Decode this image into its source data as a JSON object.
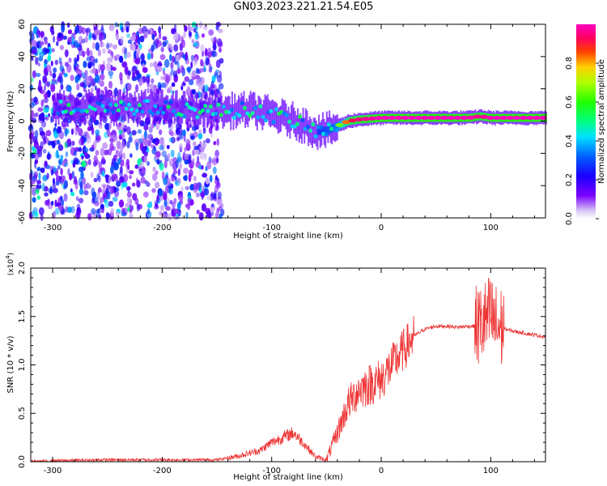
{
  "title": "GN03.2023.221.21.54.E05",
  "chart_data": [
    {
      "type": "heatmap",
      "xlabel": "Height of straight line (km)",
      "ylabel": "Frequency (Hz)",
      "xlim": [
        -320,
        150
      ],
      "ylim": [
        -60,
        60
      ],
      "x_ticks": [
        -300,
        -200,
        -100,
        0,
        100
      ],
      "y_ticks": [
        -60,
        -40,
        -20,
        0,
        20,
        40,
        60
      ],
      "colorbar": {
        "label": "Normalized spectral amplitude",
        "range": [
          0,
          1
        ],
        "ticks": [
          "0.0",
          "0.2",
          "0.4",
          "0.6",
          "0.8"
        ],
        "colormap": "hsv-like (purple, blue, cyan, green, yellow, orange, red, magenta)"
      },
      "ridge": {
        "description_x": [
          -300,
          -250,
          -200,
          -150,
          -120,
          -100,
          -80,
          -70,
          -60,
          -50,
          -40,
          -30,
          -20,
          0,
          20,
          50,
          80,
          90,
          100,
          150
        ],
        "frequency_hz": [
          8,
          9,
          8,
          6,
          7,
          4,
          0,
          -3,
          -6,
          -6,
          -3,
          0,
          1,
          2,
          2,
          2,
          2,
          3,
          2,
          2
        ],
        "peak_amplitude": [
          0.35,
          0.45,
          0.45,
          0.4,
          0.45,
          0.45,
          0.4,
          0.4,
          0.45,
          0.5,
          0.6,
          0.9,
          0.95,
          1.0,
          1.0,
          1.0,
          1.0,
          0.95,
          1.0,
          1.0
        ]
      },
      "noise_region_x": [
        -320,
        -145
      ]
    },
    {
      "type": "line",
      "xlabel": "Height of straight line (km)",
      "ylabel": "SNR (10 * v/v)",
      "y_scale_label": "(x10^4)",
      "xlim": [
        -320,
        150
      ],
      "ylim": [
        0,
        2.0
      ],
      "x_ticks": [
        -300,
        -200,
        -100,
        0,
        100
      ],
      "y_ticks": [
        "0.0",
        "0.5",
        "1.0",
        "1.5",
        "2.0"
      ],
      "color": "#ee3333",
      "series": [
        {
          "x": [
            -320,
            -300,
            -250,
            -200,
            -150,
            -130,
            -110,
            -100,
            -90,
            -80,
            -70,
            -60,
            -50,
            -40,
            -30,
            -20,
            -10,
            0,
            10,
            20,
            30,
            40,
            50,
            60,
            70,
            80,
            90,
            95,
            100,
            105,
            110,
            120,
            130,
            140,
            150
          ],
          "y": [
            0.0,
            0.01,
            0.02,
            0.02,
            0.02,
            0.06,
            0.12,
            0.2,
            0.25,
            0.3,
            0.18,
            0.05,
            0.02,
            0.3,
            0.6,
            0.75,
            0.8,
            0.85,
            1.0,
            1.15,
            1.3,
            1.37,
            1.4,
            1.4,
            1.39,
            1.4,
            1.4,
            1.45,
            1.5,
            1.4,
            1.38,
            1.35,
            1.33,
            1.31,
            1.29
          ]
        }
      ]
    }
  ]
}
